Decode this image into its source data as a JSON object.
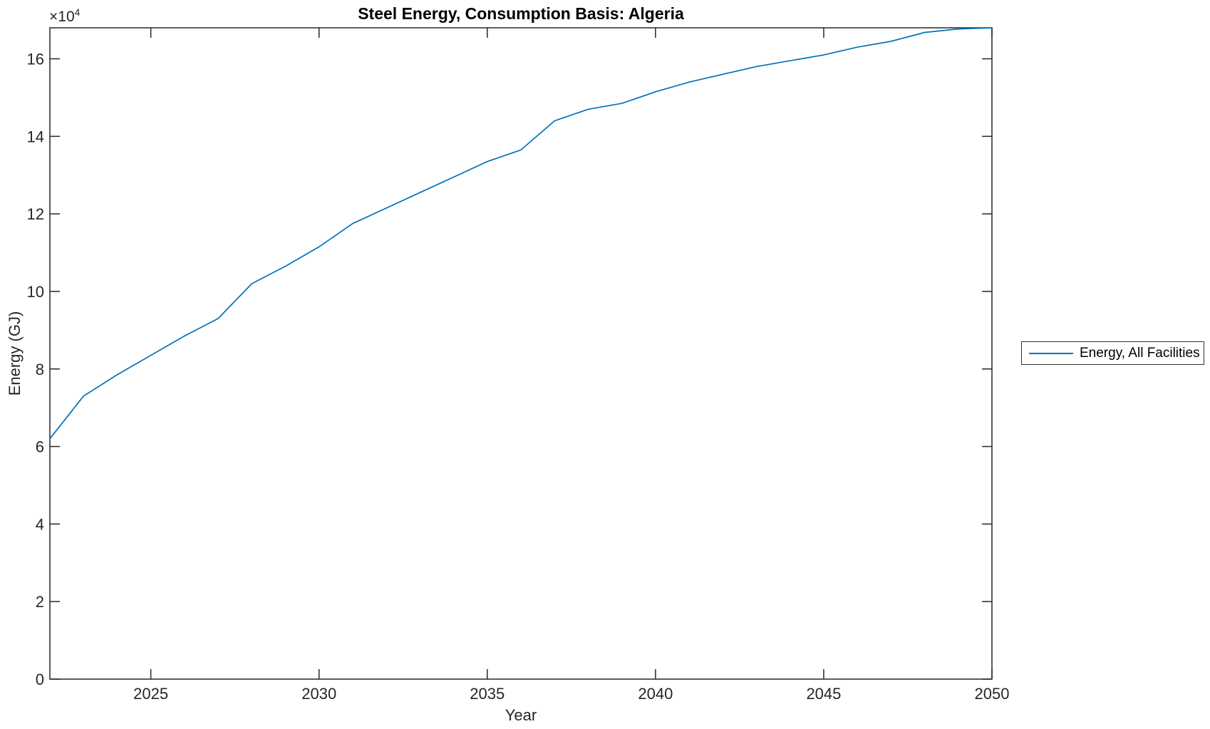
{
  "chart_data": {
    "type": "line",
    "title": "Steel Energy, Consumption Basis: Algeria",
    "xlabel": "Year",
    "ylabel": "Energy (GJ)",
    "y_multiplier_base": "×10",
    "y_multiplier_exponent": "4",
    "x": [
      2022,
      2023,
      2024,
      2025,
      2026,
      2027,
      2028,
      2029,
      2030,
      2031,
      2032,
      2033,
      2034,
      2035,
      2036,
      2037,
      2038,
      2039,
      2040,
      2041,
      2042,
      2043,
      2044,
      2045,
      2046,
      2047,
      2048,
      2049,
      2050
    ],
    "series": [
      {
        "name": "Energy, All Facilities",
        "color": "#0072BD",
        "values_x10e4_gj": [
          6.2,
          7.3,
          7.85,
          8.35,
          8.85,
          9.3,
          10.2,
          10.65,
          11.15,
          11.75,
          12.15,
          12.55,
          12.95,
          13.35,
          13.65,
          14.4,
          14.7,
          14.85,
          15.15,
          15.4,
          15.6,
          15.8,
          15.95,
          16.1,
          16.3,
          16.45,
          16.68,
          16.77,
          16.8
        ]
      }
    ],
    "xlim": [
      2022,
      2050
    ],
    "ylim_x10e4": [
      0,
      16.8
    ],
    "xticks": [
      2025,
      2030,
      2035,
      2040,
      2045,
      2050
    ],
    "yticks_x10e4": [
      0,
      2,
      4,
      6,
      8,
      10,
      12,
      14,
      16
    ],
    "grid": false,
    "legend_position": "right-outside",
    "axis_color": "#262626",
    "background_color": "#ffffff"
  }
}
